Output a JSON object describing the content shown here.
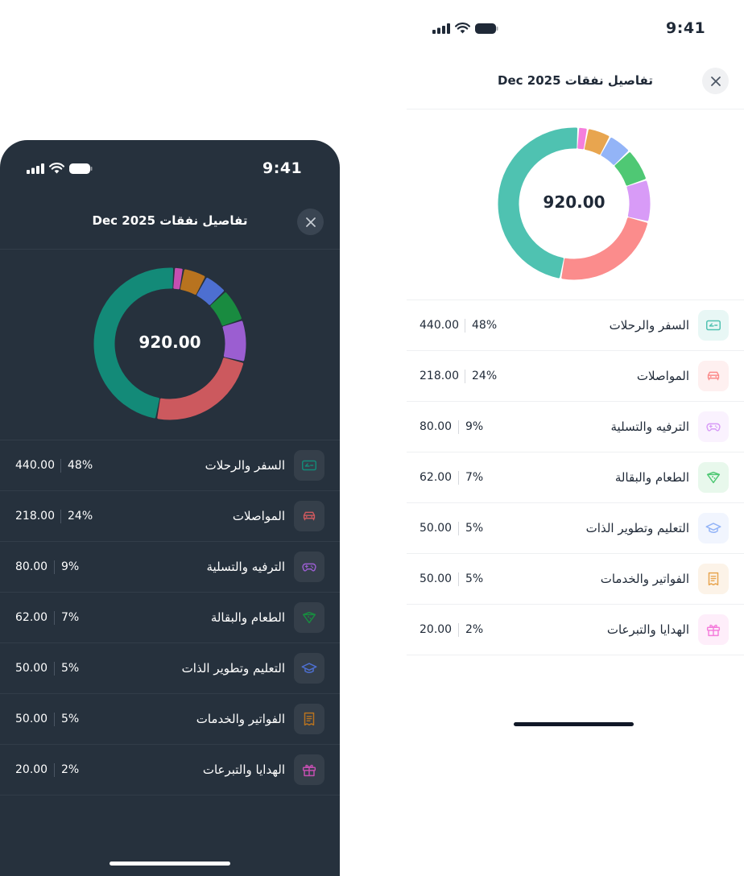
{
  "status": {
    "time": "9:41"
  },
  "header": {
    "title": "تفاصيل نفقات Dec 2025"
  },
  "chart": {
    "total": "920.00"
  },
  "categories": [
    {
      "name": "السفر والرحلات",
      "amount": "440.00",
      "percent": "48%",
      "value": 48,
      "icon": "ticket-icon",
      "colors": {
        "light": "#4fc2b1",
        "dark": "#138a78"
      }
    },
    {
      "name": "المواصلات",
      "amount": "218.00",
      "percent": "24%",
      "value": 24,
      "icon": "car-icon",
      "colors": {
        "light": "#fb8c8c",
        "dark": "#cc595e"
      }
    },
    {
      "name": "الترفيه والتسلية",
      "amount": "80.00",
      "percent": "9%",
      "value": 9,
      "icon": "gamepad-icon",
      "colors": {
        "light": "#d89bf7",
        "dark": "#9b5ed1"
      }
    },
    {
      "name": "الطعام والبقالة",
      "amount": "62.00",
      "percent": "7%",
      "value": 7,
      "icon": "food-icon",
      "colors": {
        "light": "#4fc874",
        "dark": "#198b40"
      }
    },
    {
      "name": "التعليم وتطوير الذات",
      "amount": "50.00",
      "percent": "5%",
      "value": 5,
      "icon": "graduation-cap-icon",
      "colors": {
        "light": "#93b4f7",
        "dark": "#4d6fd1"
      }
    },
    {
      "name": "الفواتير والخدمات",
      "amount": "50.00",
      "percent": "5%",
      "value": 5,
      "icon": "receipt-icon",
      "colors": {
        "light": "#e8a54f",
        "dark": "#b8731f"
      }
    },
    {
      "name": "الهدايا والتبرعات",
      "amount": "20.00",
      "percent": "2%",
      "value": 2,
      "icon": "gift-icon",
      "colors": {
        "light": "#f57edc",
        "dark": "#c44fb1"
      }
    }
  ]
}
